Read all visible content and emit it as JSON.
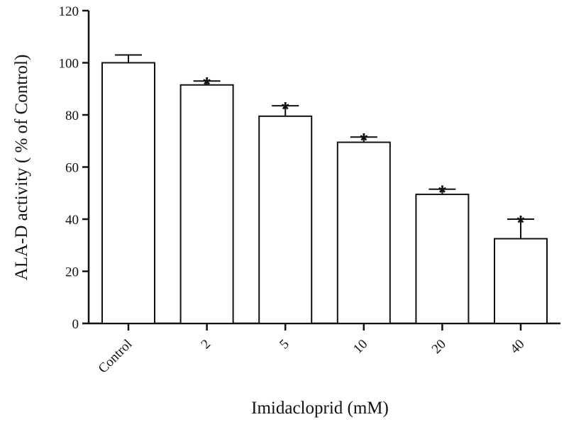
{
  "chart_data": {
    "type": "bar",
    "title": "",
    "xlabel": "Imidacloprid (mM)",
    "ylabel": "ALA-D activity ( % of Control)",
    "categories": [
      "Control",
      "2",
      "5",
      "10",
      "20",
      "40"
    ],
    "values": [
      100,
      91.5,
      79.5,
      69.5,
      49.5,
      32.5
    ],
    "errors": [
      3,
      1.5,
      4,
      2,
      2,
      7.5
    ],
    "annotations": [
      "",
      "*",
      "*",
      "*",
      "*",
      "*"
    ],
    "ylim": [
      0,
      120
    ],
    "yticks": [
      0,
      20,
      40,
      60,
      80,
      100,
      120
    ],
    "grid": false,
    "legend": "none",
    "colors": {
      "bar_fill": "#ffffff",
      "stroke": "#111111"
    }
  }
}
